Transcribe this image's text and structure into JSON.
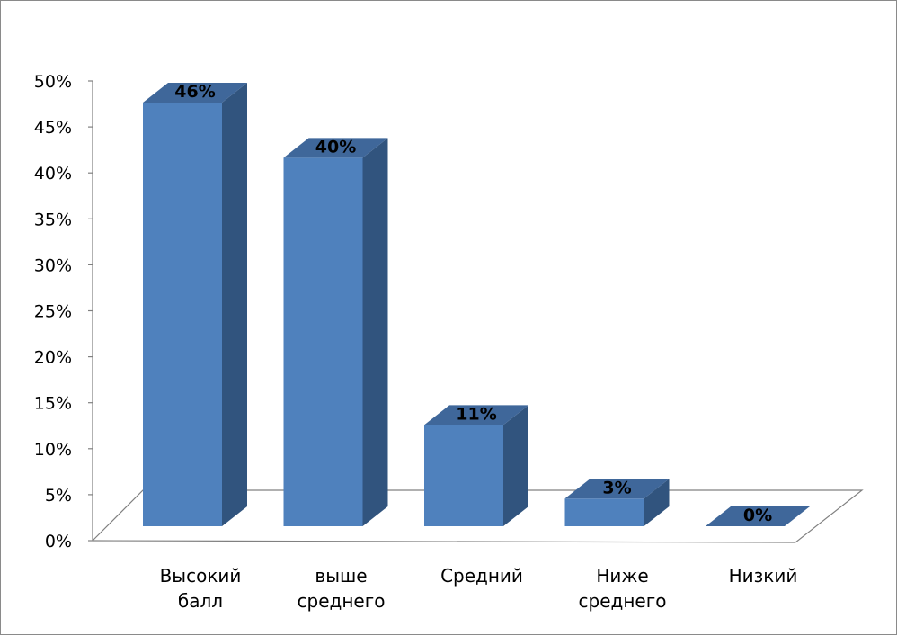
{
  "chart_data": {
    "type": "bar",
    "categories": [
      [
        "Высокий",
        "балл"
      ],
      [
        "выше",
        "среднего"
      ],
      [
        "Средний"
      ],
      [
        "Ниже",
        "среднего"
      ],
      [
        "Низкий"
      ]
    ],
    "values": [
      46,
      40,
      11,
      3,
      0
    ],
    "data_labels": [
      "46%",
      "40%",
      "11%",
      "3%",
      "0%"
    ],
    "y_ticks": [
      "0%",
      "5%",
      "10%",
      "15%",
      "20%",
      "25%",
      "30%",
      "35%",
      "40%",
      "45%",
      "50%"
    ],
    "ylim": [
      0,
      50
    ],
    "grid": false,
    "legend": "none",
    "colors": {
      "front": "#4f81bd",
      "top": "#3f679a",
      "side": "#31547e",
      "axis": "#808080"
    }
  }
}
